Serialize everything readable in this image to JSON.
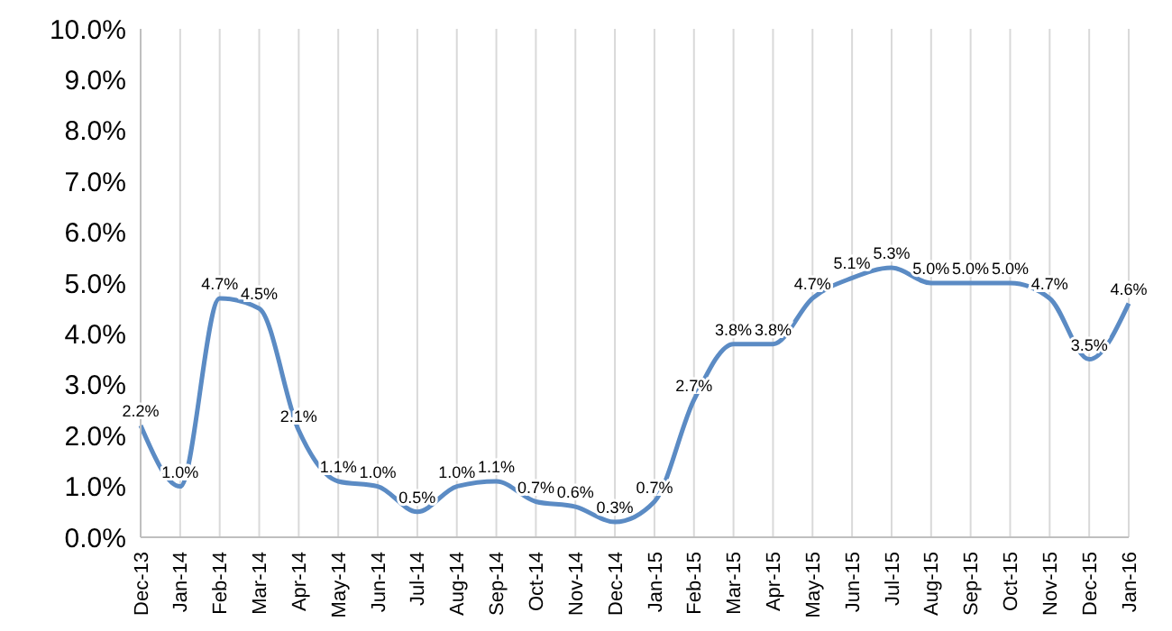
{
  "chart_data": {
    "type": "line",
    "categories": [
      "Dec-13",
      "Jan-14",
      "Feb-14",
      "Mar-14",
      "Apr-14",
      "May-14",
      "Jun-14",
      "Jul-14",
      "Aug-14",
      "Sep-14",
      "Oct-14",
      "Nov-14",
      "Dec-14",
      "Jan-15",
      "Feb-15",
      "Mar-15",
      "Apr-15",
      "May-15",
      "Jun-15",
      "Jul-15",
      "Aug-15",
      "Sep-15",
      "Oct-15",
      "Nov-15",
      "Dec-15",
      "Jan-16"
    ],
    "series": [
      {
        "color": "#5b8bc4",
        "values": [
          2.2,
          1.0,
          4.7,
          4.5,
          2.1,
          1.1,
          1.0,
          0.5,
          1.0,
          1.1,
          0.7,
          0.6,
          0.3,
          0.7,
          2.7,
          3.8,
          3.8,
          4.7,
          5.1,
          5.3,
          5.0,
          5.0,
          5.0,
          4.7,
          3.5,
          4.6
        ]
      }
    ],
    "value_labels": [
      "2.2%",
      "1.0%",
      "4.7%",
      "4.5%",
      "2.1%",
      "1.1%",
      "1.0%",
      "0.5%",
      "1.0%",
      "1.1%",
      "0.7%",
      "0.6%",
      "0.3%",
      "0.7%",
      "2.7%",
      "3.8%",
      "3.8%",
      "4.7%",
      "5.1%",
      "5.3%",
      "5.0%",
      "5.0%",
      "5.0%",
      "4.7%",
      "3.5%",
      "4.6%"
    ],
    "ylim": [
      0,
      10
    ],
    "yticks": [
      {
        "value": 0,
        "label": "0.0%"
      },
      {
        "value": 1,
        "label": "1.0%"
      },
      {
        "value": 2,
        "label": "2.0%"
      },
      {
        "value": 3,
        "label": "3.0%"
      },
      {
        "value": 4,
        "label": "4.0%"
      },
      {
        "value": 5,
        "label": "5.0%"
      },
      {
        "value": 6,
        "label": "6.0%"
      },
      {
        "value": 7,
        "label": "7.0%"
      },
      {
        "value": 8,
        "label": "8.0%"
      },
      {
        "value": 9,
        "label": "9.0%"
      },
      {
        "value": 10,
        "label": "10.0%"
      }
    ],
    "grid": "x",
    "marker": "none",
    "line_style": "solid"
  }
}
